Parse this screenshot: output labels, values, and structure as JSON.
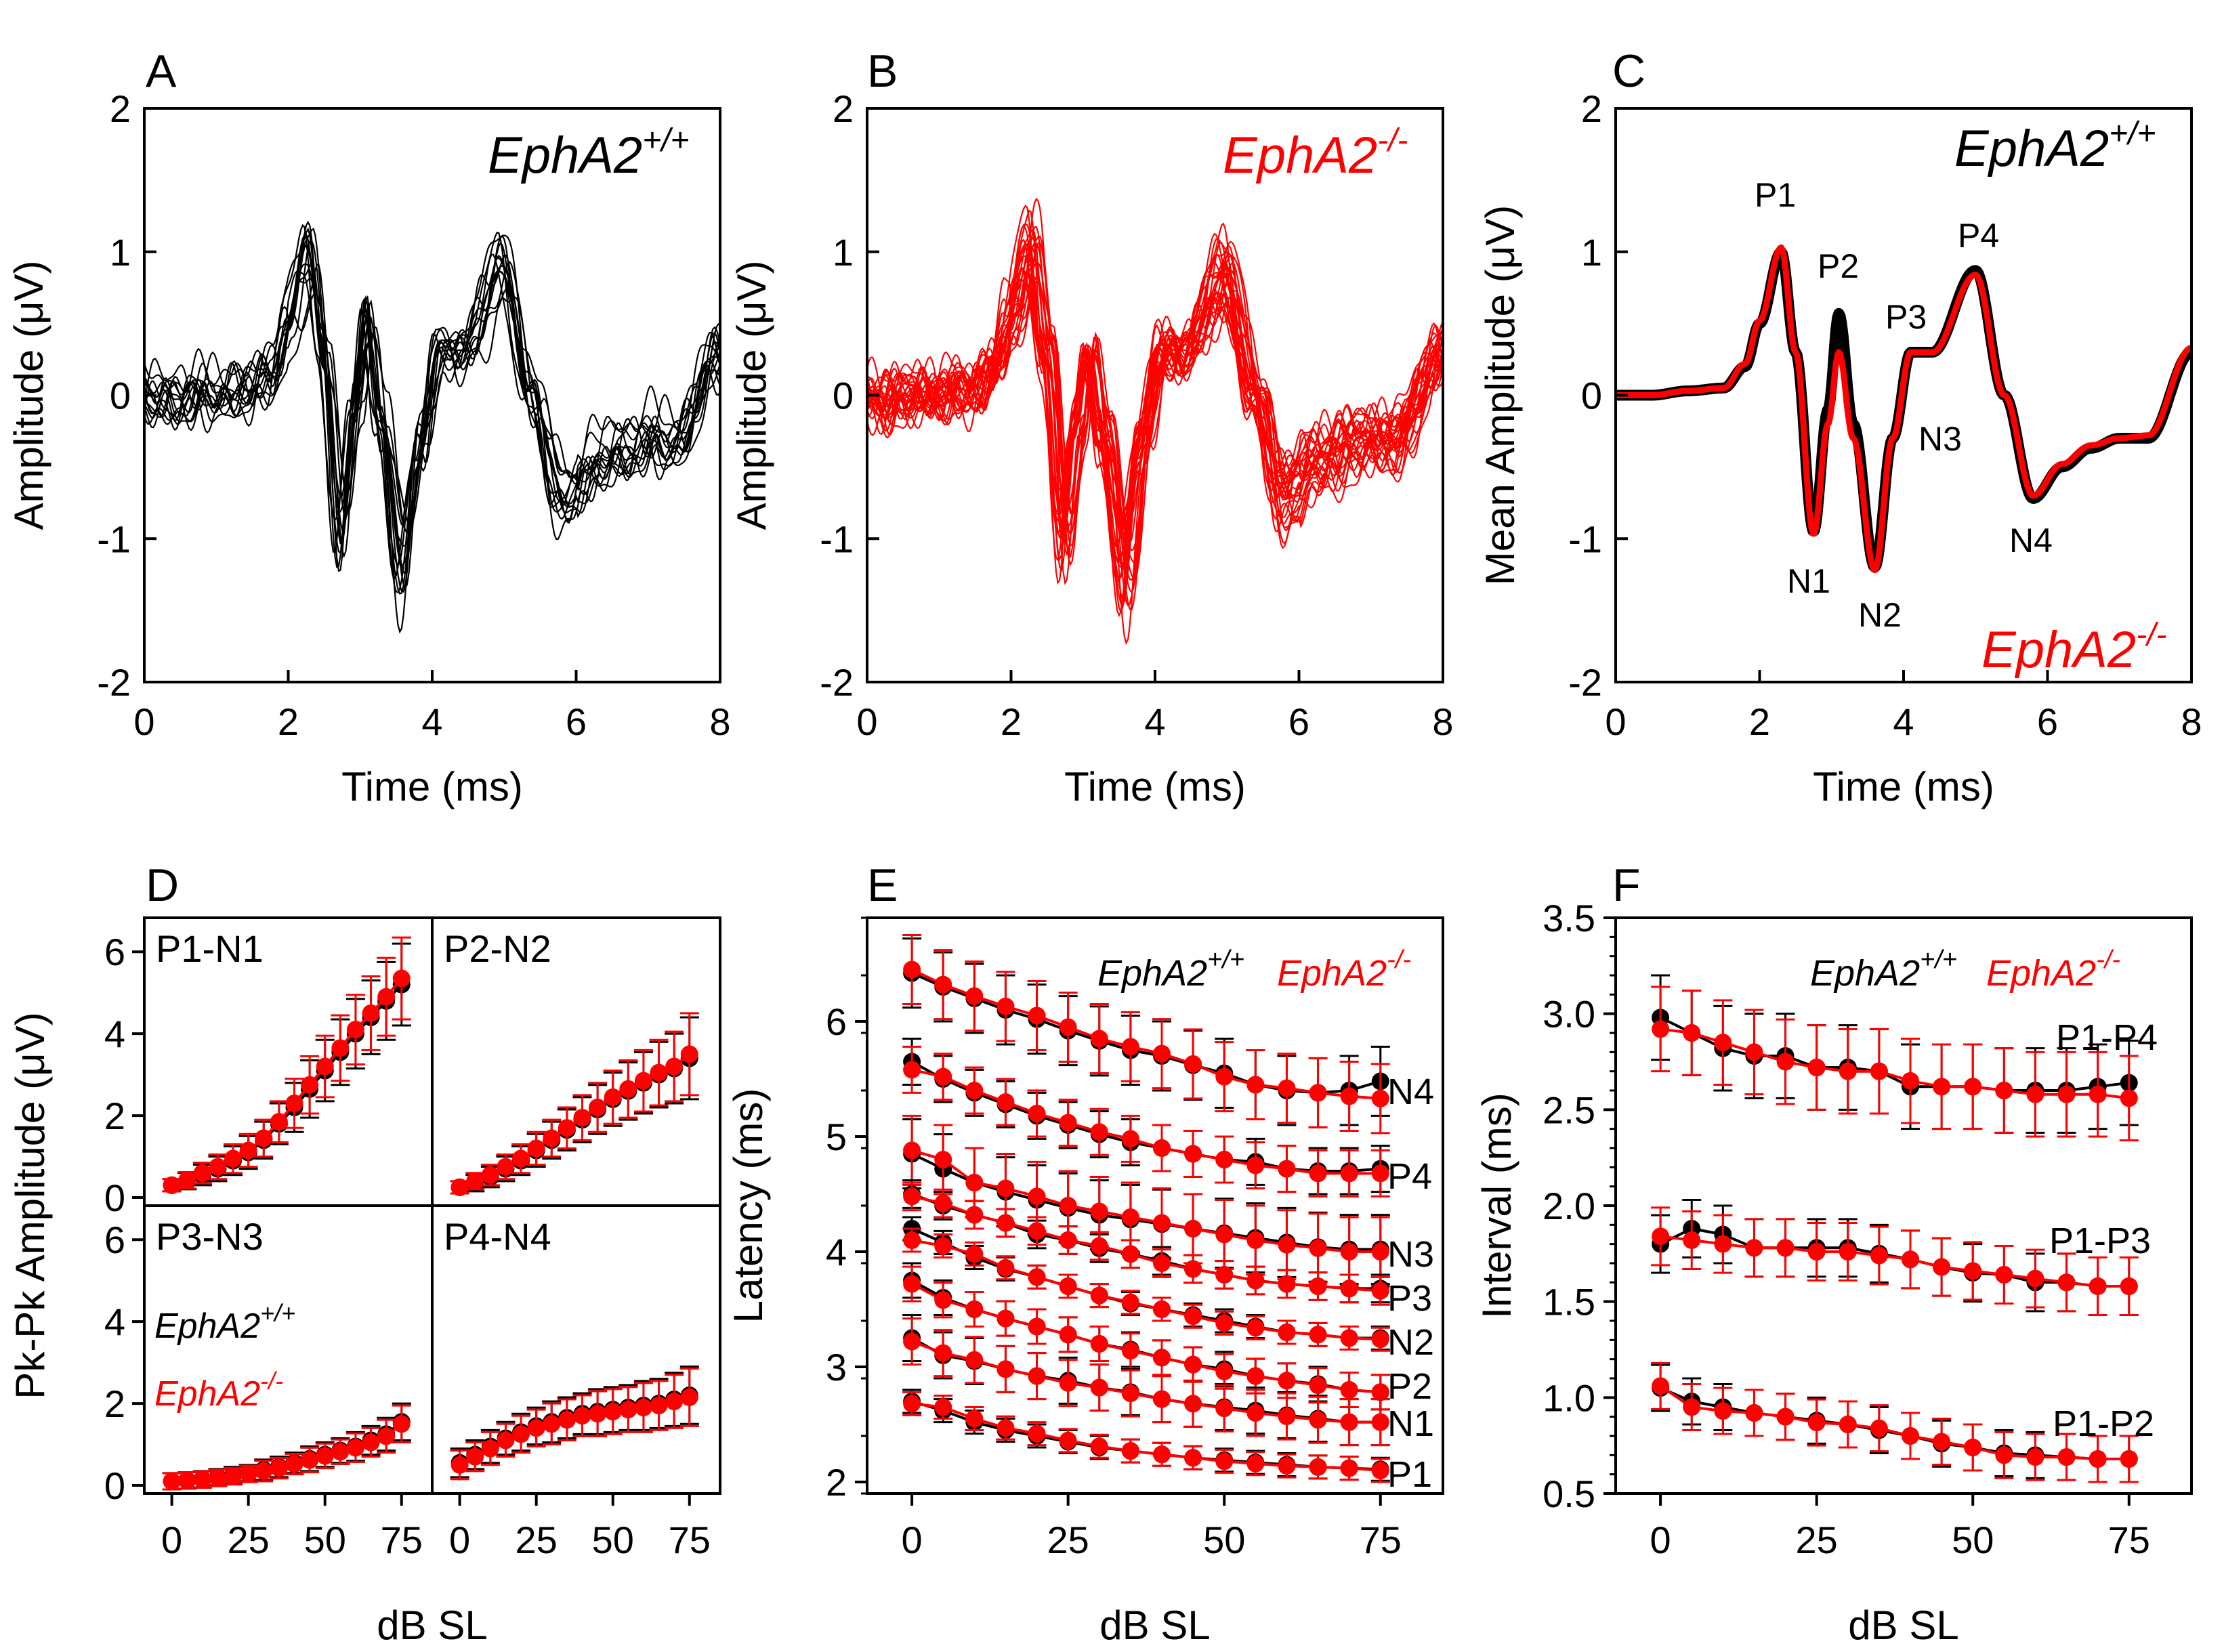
{
  "colors": {
    "wt": "#000000",
    "ko": "#ff0000",
    "axis": "#000000"
  },
  "genotype": {
    "wt_label": "EphA2",
    "wt_sup": "+/+",
    "ko_label": "EphA2",
    "ko_sup": "-/-"
  },
  "top": {
    "xlabel": "Time (ms)",
    "xticks": [
      "0",
      "2",
      "4",
      "6",
      "8"
    ],
    "yticks": [
      "2",
      "1",
      "0",
      "-1",
      "-2"
    ],
    "panels": [
      {
        "letter": "A",
        "ylabel": "Amplitude (μV)"
      },
      {
        "letter": "B",
        "ylabel": "Amplitude (μV)"
      },
      {
        "letter": "C",
        "ylabel": "Mean Amplitude (μV)"
      }
    ],
    "peaks": [
      "P1",
      "P2",
      "P3",
      "P4",
      "N1",
      "N2",
      "N3",
      "N4"
    ]
  },
  "bottom": {
    "xlabel": "dB SL",
    "xticks": [
      "0",
      "25",
      "50",
      "75"
    ],
    "d": {
      "letter": "D",
      "ylabel": "Pk-Pk Amplitude (μV)",
      "yticks": [
        "6",
        "4",
        "2",
        "0"
      ],
      "sub": [
        "P1-N1",
        "P2-N2",
        "P3-N3",
        "P4-N4"
      ]
    },
    "e": {
      "letter": "E",
      "ylabel": "Latency (ms)",
      "yticks": [
        "6",
        "5",
        "4",
        "3",
        "2"
      ],
      "labels": [
        "N4",
        "P4",
        "N3",
        "P3",
        "N2",
        "P2",
        "N1",
        "P1"
      ]
    },
    "f": {
      "letter": "F",
      "ylabel": "Interval (ms)",
      "yticks": [
        "3.5",
        "3.0",
        "2.5",
        "2.0",
        "1.5",
        "1.0",
        "0.5"
      ],
      "labels": [
        "P1-P4",
        "P1-P3",
        "P1-P2"
      ]
    }
  },
  "chart_data": [
    {
      "panel": "C",
      "type": "line",
      "title": "",
      "xlabel": "Time (ms)",
      "ylabel": "Mean Amplitude (μV)",
      "xlim": [
        0,
        8
      ],
      "ylim": [
        -2,
        2
      ],
      "series": [
        {
          "name": "EphA2+/+",
          "x": [
            0,
            0.5,
            1.0,
            1.5,
            1.8,
            2.0,
            2.3,
            2.5,
            2.75,
            2.95,
            3.1,
            3.3,
            3.6,
            3.85,
            4.1,
            4.4,
            5.0,
            5.4,
            5.8,
            6.2,
            6.6,
            7.0,
            7.4,
            8.0
          ],
          "values": [
            0,
            0,
            0.03,
            0.05,
            0.2,
            0.5,
            1.0,
            0.3,
            -0.95,
            -0.1,
            0.57,
            -0.2,
            -1.2,
            -0.3,
            0.3,
            0.3,
            0.87,
            0.0,
            -0.72,
            -0.5,
            -0.37,
            -0.3,
            -0.3,
            0.3
          ]
        },
        {
          "name": "EphA2-/-",
          "x": [
            0,
            0.5,
            1.0,
            1.5,
            1.8,
            2.0,
            2.3,
            2.5,
            2.75,
            2.95,
            3.1,
            3.3,
            3.6,
            3.85,
            4.1,
            4.4,
            5.0,
            5.4,
            5.8,
            6.2,
            6.6,
            7.0,
            7.4,
            8.0
          ],
          "values": [
            0,
            0,
            0.03,
            0.05,
            0.22,
            0.52,
            1.03,
            0.3,
            -0.97,
            -0.2,
            0.3,
            -0.3,
            -1.22,
            -0.3,
            0.3,
            0.3,
            0.84,
            0.0,
            -0.7,
            -0.48,
            -0.35,
            -0.3,
            -0.28,
            0.33
          ]
        }
      ]
    },
    {
      "panel": "D",
      "type": "line",
      "xlabel": "dB SL",
      "ylabel": "Pk-Pk Amplitude (μV)",
      "x": [
        0,
        5,
        10,
        15,
        20,
        25,
        30,
        35,
        40,
        45,
        50,
        55,
        60,
        65,
        70,
        75
      ],
      "ylim": [
        0,
        6.5
      ],
      "xlim": [
        -5,
        85
      ],
      "subplots": [
        {
          "name": "P1-N1",
          "wt": [
            0.3,
            0.4,
            0.55,
            0.7,
            0.9,
            1.1,
            1.4,
            1.8,
            2.2,
            2.65,
            3.1,
            3.55,
            4.0,
            4.4,
            4.8,
            5.2
          ],
          "ko": [
            0.3,
            0.42,
            0.6,
            0.75,
            0.95,
            1.15,
            1.45,
            1.85,
            2.3,
            2.75,
            3.2,
            3.65,
            4.1,
            4.5,
            4.9,
            5.35
          ],
          "err": [
            0.15,
            0.2,
            0.25,
            0.3,
            0.35,
            0.4,
            0.45,
            0.5,
            0.6,
            0.7,
            0.75,
            0.8,
            0.85,
            0.9,
            0.95,
            1.0
          ]
        },
        {
          "name": "P2-N2",
          "wt": [
            0.25,
            0.35,
            0.5,
            0.7,
            0.9,
            1.15,
            1.4,
            1.65,
            1.9,
            2.15,
            2.4,
            2.6,
            2.8,
            3.0,
            3.15,
            3.4
          ],
          "ko": [
            0.25,
            0.4,
            0.55,
            0.75,
            0.95,
            1.2,
            1.45,
            1.7,
            1.95,
            2.2,
            2.45,
            2.65,
            2.85,
            3.05,
            3.2,
            3.5
          ],
          "err": [
            0.15,
            0.2,
            0.25,
            0.3,
            0.35,
            0.4,
            0.45,
            0.5,
            0.55,
            0.6,
            0.65,
            0.7,
            0.75,
            0.8,
            0.85,
            1.0
          ]
        },
        {
          "name": "P3-N3",
          "wt": [
            0.1,
            0.12,
            0.15,
            0.2,
            0.25,
            0.3,
            0.38,
            0.45,
            0.55,
            0.65,
            0.75,
            0.85,
            0.95,
            1.1,
            1.25,
            1.55
          ],
          "ko": [
            0.1,
            0.12,
            0.14,
            0.18,
            0.22,
            0.28,
            0.35,
            0.42,
            0.52,
            0.62,
            0.72,
            0.82,
            0.92,
            1.05,
            1.2,
            1.5
          ],
          "err": [
            0.2,
            0.2,
            0.2,
            0.2,
            0.2,
            0.2,
            0.25,
            0.25,
            0.25,
            0.3,
            0.3,
            0.3,
            0.35,
            0.35,
            0.4,
            0.45
          ]
        },
        {
          "name": "P4-N4",
          "wt": [
            0.55,
            0.75,
            0.95,
            1.15,
            1.3,
            1.45,
            1.55,
            1.65,
            1.75,
            1.8,
            1.85,
            1.9,
            1.95,
            2.0,
            2.1,
            2.2
          ],
          "ko": [
            0.5,
            0.7,
            0.9,
            1.1,
            1.25,
            1.4,
            1.5,
            1.6,
            1.7,
            1.75,
            1.8,
            1.85,
            1.9,
            1.95,
            2.05,
            2.15
          ],
          "err": [
            0.35,
            0.35,
            0.4,
            0.4,
            0.45,
            0.45,
            0.5,
            0.5,
            0.5,
            0.55,
            0.55,
            0.55,
            0.6,
            0.6,
            0.65,
            0.7
          ]
        }
      ]
    },
    {
      "panel": "E",
      "type": "line",
      "xlabel": "dB SL",
      "ylabel": "Latency (ms)",
      "x": [
        0,
        5,
        10,
        15,
        20,
        25,
        30,
        35,
        40,
        45,
        50,
        55,
        60,
        65,
        70,
        75
      ],
      "ylim": [
        1.9,
        6.9
      ],
      "xlim": [
        -5,
        85
      ],
      "series": [
        {
          "name": "N4",
          "wt": [
            6.42,
            6.3,
            6.2,
            6.1,
            6.02,
            5.92,
            5.83,
            5.75,
            5.7,
            5.62,
            5.55,
            5.45,
            5.4,
            5.38,
            5.4,
            5.48
          ],
          "ko": [
            6.45,
            6.32,
            6.22,
            6.13,
            6.05,
            5.95,
            5.85,
            5.78,
            5.72,
            5.63,
            5.52,
            5.45,
            5.42,
            5.38,
            5.35,
            5.33
          ],
          "err": 0.3
        },
        {
          "name": "P4",
          "wt": [
            5.65,
            5.5,
            5.38,
            5.28,
            5.18,
            5.1,
            5.02,
            4.95,
            4.9,
            4.85,
            4.8,
            4.78,
            4.72,
            4.7,
            4.7,
            4.72
          ],
          "ko": [
            5.58,
            5.52,
            5.4,
            5.3,
            5.2,
            5.12,
            5.04,
            4.98,
            4.9,
            4.85,
            4.8,
            4.75,
            4.72,
            4.68,
            4.68,
            4.68
          ],
          "err": 0.2
        },
        {
          "name": "N3",
          "wt": [
            4.85,
            4.72,
            4.6,
            4.52,
            4.45,
            4.38,
            4.32,
            4.28,
            4.24,
            4.2,
            4.16,
            4.12,
            4.08,
            4.04,
            4.02,
            4.02
          ],
          "ko": [
            4.88,
            4.8,
            4.6,
            4.55,
            4.48,
            4.4,
            4.35,
            4.3,
            4.25,
            4.2,
            4.15,
            4.1,
            4.06,
            4.03,
            4.0,
            4.0
          ],
          "err": 0.3
        },
        {
          "name": "P3",
          "wt": [
            4.5,
            4.4,
            4.32,
            4.25,
            4.15,
            4.1,
            4.03,
            3.98,
            3.92,
            3.85,
            3.8,
            3.75,
            3.72,
            3.7,
            3.68,
            3.68
          ],
          "ko": [
            4.48,
            4.42,
            4.32,
            4.25,
            4.18,
            4.1,
            4.05,
            3.98,
            3.9,
            3.85,
            3.8,
            3.75,
            3.72,
            3.7,
            3.68,
            3.66
          ],
          "err": 0.12
        },
        {
          "name": "N2",
          "wt": [
            4.2,
            4.08,
            3.95,
            3.85,
            3.78,
            3.7,
            3.62,
            3.55,
            3.5,
            3.45,
            3.4,
            3.35,
            3.3,
            3.28,
            3.25,
            3.25
          ],
          "ko": [
            4.1,
            4.05,
            3.98,
            3.86,
            3.78,
            3.7,
            3.62,
            3.56,
            3.5,
            3.44,
            3.38,
            3.34,
            3.3,
            3.28,
            3.25,
            3.24
          ],
          "err": 0.1
        },
        {
          "name": "P2",
          "wt": [
            3.75,
            3.6,
            3.5,
            3.42,
            3.35,
            3.28,
            3.2,
            3.15,
            3.08,
            3.02,
            2.98,
            2.92,
            2.88,
            2.85,
            2.8,
            2.78
          ],
          "ko": [
            3.72,
            3.58,
            3.5,
            3.42,
            3.35,
            3.28,
            3.2,
            3.14,
            3.08,
            3.02,
            2.96,
            2.92,
            2.88,
            2.84,
            2.8,
            2.78
          ],
          "err": 0.15
        },
        {
          "name": "N1",
          "wt": [
            3.25,
            3.1,
            3.05,
            2.98,
            2.92,
            2.88,
            2.82,
            2.78,
            2.72,
            2.68,
            2.65,
            2.62,
            2.58,
            2.55,
            2.52,
            2.52
          ],
          "ko": [
            3.22,
            3.12,
            3.06,
            2.98,
            2.92,
            2.86,
            2.82,
            2.77,
            2.72,
            2.68,
            2.64,
            2.6,
            2.57,
            2.54,
            2.52,
            2.52
          ],
          "err": 0.2
        },
        {
          "name": "P1",
          "wt": [
            2.7,
            2.62,
            2.52,
            2.45,
            2.4,
            2.35,
            2.3,
            2.27,
            2.24,
            2.21,
            2.19,
            2.17,
            2.15,
            2.13,
            2.12,
            2.11
          ],
          "ko": [
            2.68,
            2.65,
            2.55,
            2.47,
            2.42,
            2.36,
            2.31,
            2.27,
            2.24,
            2.21,
            2.18,
            2.16,
            2.14,
            2.13,
            2.12,
            2.1
          ],
          "err": 0.1
        }
      ]
    },
    {
      "panel": "F",
      "type": "line",
      "xlabel": "dB SL",
      "ylabel": "Interval (ms)",
      "x": [
        0,
        5,
        10,
        15,
        20,
        25,
        30,
        35,
        40,
        45,
        50,
        55,
        60,
        65,
        70,
        75
      ],
      "ylim": [
        0.5,
        3.5
      ],
      "xlim": [
        -5,
        85
      ],
      "series": [
        {
          "name": "P1-P4",
          "wt": [
            2.98,
            2.9,
            2.82,
            2.78,
            2.78,
            2.72,
            2.72,
            2.7,
            2.62,
            2.62,
            2.62,
            2.6,
            2.6,
            2.6,
            2.62,
            2.64
          ],
          "ko": [
            2.92,
            2.9,
            2.85,
            2.8,
            2.75,
            2.72,
            2.7,
            2.7,
            2.65,
            2.62,
            2.62,
            2.6,
            2.58,
            2.58,
            2.58,
            2.56
          ],
          "err": 0.22
        },
        {
          "name": "P1-P3",
          "wt": [
            1.8,
            1.88,
            1.85,
            1.78,
            1.78,
            1.78,
            1.78,
            1.75,
            1.72,
            1.68,
            1.65,
            1.64,
            1.6,
            1.6,
            1.58,
            1.58
          ],
          "ko": [
            1.84,
            1.82,
            1.8,
            1.78,
            1.78,
            1.76,
            1.76,
            1.74,
            1.72,
            1.68,
            1.66,
            1.64,
            1.62,
            1.6,
            1.58,
            1.58
          ],
          "err": 0.15
        },
        {
          "name": "P1-P2",
          "wt": [
            1.05,
            0.98,
            0.95,
            0.92,
            0.9,
            0.88,
            0.86,
            0.83,
            0.8,
            0.76,
            0.74,
            0.71,
            0.7,
            0.69,
            0.68,
            0.68
          ],
          "ko": [
            1.06,
            0.95,
            0.93,
            0.92,
            0.9,
            0.87,
            0.86,
            0.84,
            0.8,
            0.77,
            0.74,
            0.7,
            0.69,
            0.69,
            0.68,
            0.68
          ],
          "err": 0.12
        }
      ]
    }
  ]
}
